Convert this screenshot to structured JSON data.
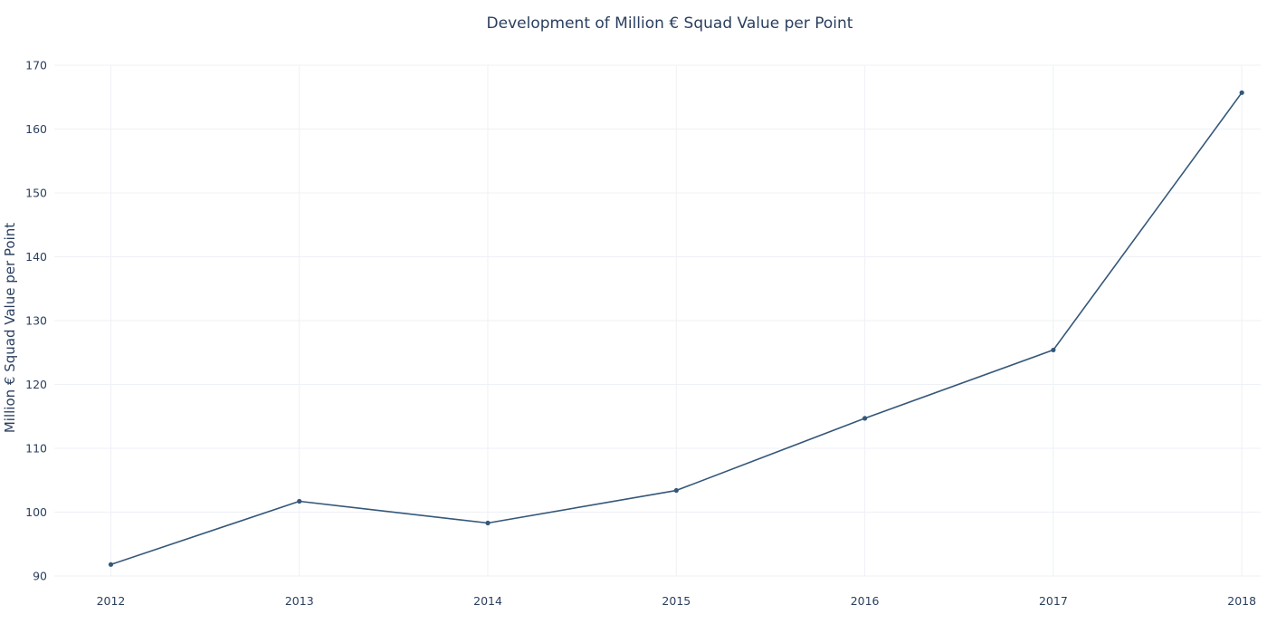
{
  "chart_data": {
    "type": "line",
    "title": "Development of Million € Squad Value per Point",
    "xlabel": "",
    "ylabel": "Million € Squad Value per Point",
    "x": [
      2012,
      2013,
      2014,
      2015,
      2016,
      2017,
      2018
    ],
    "x_tick_labels": [
      "2012",
      "2013",
      "2014",
      "2015",
      "2016",
      "2017",
      "2018"
    ],
    "y_ticks": [
      90,
      100,
      110,
      120,
      130,
      140,
      150,
      160,
      170
    ],
    "y_tick_labels": [
      "90",
      "100",
      "110",
      "120",
      "130",
      "140",
      "150",
      "160",
      "170"
    ],
    "ylim": [
      90,
      170
    ],
    "xlim": [
      2011.7,
      2018.1
    ],
    "grid": true,
    "legend": "none",
    "series": [
      {
        "values": [
          91.8,
          101.7,
          98.3,
          103.4,
          114.7,
          125.4,
          165.7
        ],
        "color": "#34577a"
      }
    ],
    "colors": {
      "grid": "#eef1f5",
      "text": "#2a3f5f",
      "line": "#34577a",
      "background": "#ffffff"
    }
  }
}
